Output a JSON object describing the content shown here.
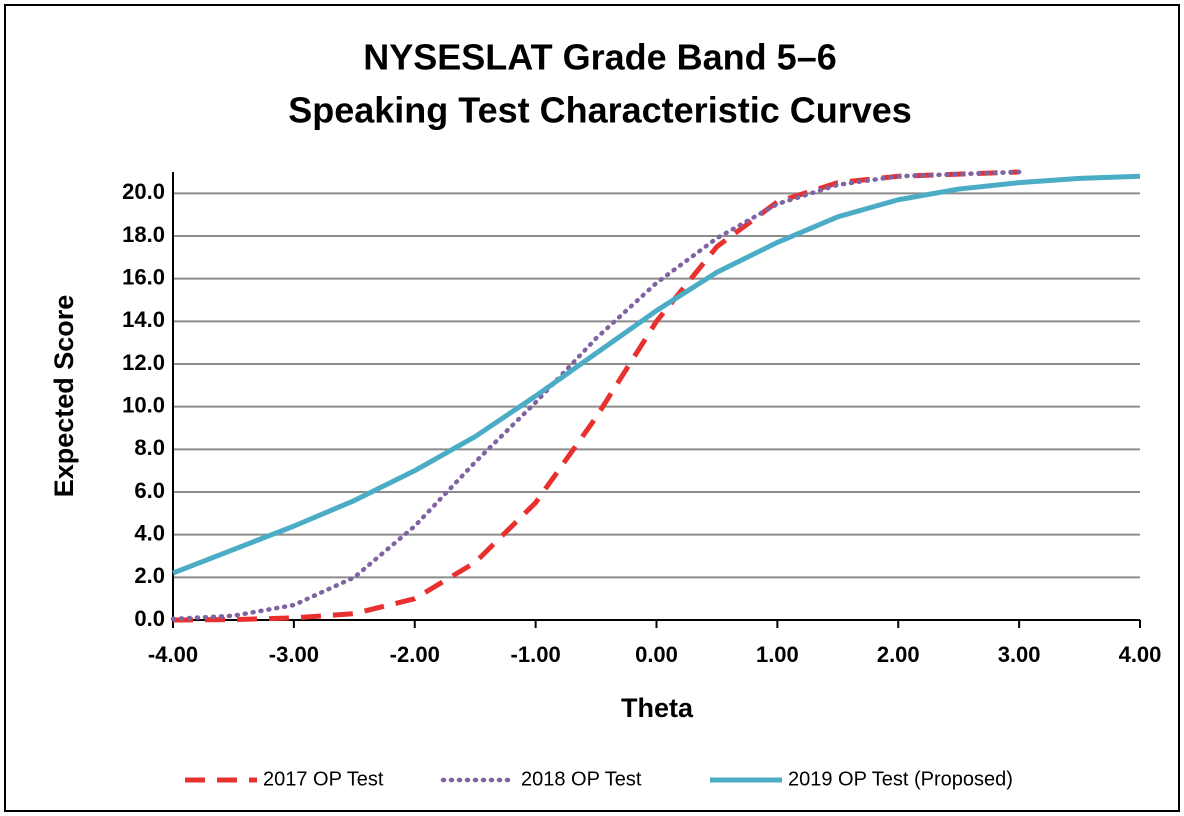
{
  "chart_data": {
    "type": "line",
    "title": "NYSESLAT Grade Band 5–6",
    "subtitle": "Speaking Test Characteristic Curves",
    "x_label": "Theta",
    "y_label": "Expected Score",
    "x": [
      -4,
      -3.5,
      -3,
      -2.5,
      -2,
      -1.5,
      -1,
      -0.5,
      0,
      0.5,
      1,
      1.5,
      2,
      2.5,
      3,
      3.5,
      4
    ],
    "series": [
      {
        "name": "2017 OP Test",
        "color": "#e8312f",
        "style": "dashed",
        "values": [
          0,
          0.02,
          0.1,
          0.3,
          1.0,
          2.7,
          5.5,
          9.5,
          14.0,
          17.5,
          19.6,
          20.5,
          20.8,
          20.9,
          21.0,
          null,
          null
        ]
      },
      {
        "name": "2018 OP Test",
        "color": "#8064a2",
        "style": "dotted",
        "values": [
          0.05,
          0.2,
          0.7,
          2.0,
          4.4,
          7.4,
          10.2,
          13.2,
          15.8,
          17.9,
          19.5,
          20.4,
          20.8,
          20.9,
          21.0,
          null,
          null
        ]
      },
      {
        "name": "2019 OP Test (Proposed)",
        "color": "#4bacc6",
        "style": "solid",
        "values": [
          2.2,
          3.3,
          4.4,
          5.6,
          7.0,
          8.6,
          10.5,
          12.5,
          14.5,
          16.3,
          17.7,
          18.9,
          19.7,
          20.2,
          20.5,
          20.7,
          20.8
        ]
      }
    ],
    "xlim": [
      -4,
      4
    ],
    "ylim": [
      0,
      21
    ],
    "xticks": [
      {
        "value": -4,
        "label": "-4.00"
      },
      {
        "value": -3,
        "label": "-3.00"
      },
      {
        "value": -2,
        "label": "-2.00"
      },
      {
        "value": -1,
        "label": "-1.00"
      },
      {
        "value": 0,
        "label": "0.00"
      },
      {
        "value": 1,
        "label": "1.00"
      },
      {
        "value": 2,
        "label": "2.00"
      },
      {
        "value": 3,
        "label": "3.00"
      },
      {
        "value": 4,
        "label": "4.00"
      }
    ],
    "yticks": [
      {
        "value": 0,
        "label": "0.0"
      },
      {
        "value": 2,
        "label": "2.0"
      },
      {
        "value": 4,
        "label": "4.0"
      },
      {
        "value": 6,
        "label": "6.0"
      },
      {
        "value": 8,
        "label": "8.0"
      },
      {
        "value": 10,
        "label": "10.0"
      },
      {
        "value": 12,
        "label": "12.0"
      },
      {
        "value": 14,
        "label": "14.0"
      },
      {
        "value": 16,
        "label": "16.0"
      },
      {
        "value": 18,
        "label": "18.0"
      },
      {
        "value": 20,
        "label": "20.0"
      }
    ],
    "grid": true,
    "legend": "bottom"
  }
}
